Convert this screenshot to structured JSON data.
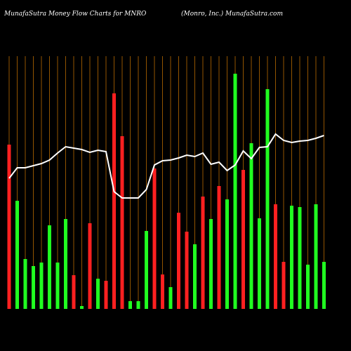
{
  "chart_data": {
    "type": "bar",
    "title": "MunafaSutra  Money Flow  Charts for MNRO",
    "subtitle": "(Monro,  Inc.) MunafaSutra.com",
    "categories": [
      null,
      null,
      null,
      null,
      null,
      null,
      null,
      null,
      null,
      null,
      null,
      null,
      null,
      null,
      null,
      null,
      null,
      null,
      null,
      null,
      null,
      null,
      null,
      null,
      null,
      null,
      null,
      null,
      null,
      null,
      null,
      null,
      null,
      null,
      null,
      null,
      null,
      null,
      null,
      null
    ],
    "values": [
      234,
      154,
      71,
      61,
      66,
      119,
      66,
      128,
      48,
      4,
      122,
      43,
      40,
      307,
      246,
      11,
      11,
      111,
      200,
      49,
      31,
      137,
      110,
      92,
      160,
      128,
      175,
      156,
      335,
      198,
      236,
      129,
      313,
      149,
      67,
      147,
      145,
      63,
      149,
      67
    ],
    "colors": [
      "#ff2020",
      "#20ff20",
      "#20ff20",
      "#20ff20",
      "#20ff20",
      "#20ff20",
      "#20ff20",
      "#20ff20",
      "#ff2020",
      "#20ff20",
      "#ff2020",
      "#20ff20",
      "#ff2020",
      "#ff2020",
      "#ff2020",
      "#20ff20",
      "#20ff20",
      "#20ff20",
      "#ff2020",
      "#ff2020",
      "#20ff20",
      "#ff2020",
      "#ff2020",
      "#20ff20",
      "#ff2020",
      "#20ff20",
      "#ff2020",
      "#20ff20",
      "#20ff20",
      "#ff2020",
      "#20ff20",
      "#20ff20",
      "#20ff20",
      "#ff2020",
      "#ff2020",
      "#20ff20",
      "#20ff20",
      "#20ff20",
      "#20ff20",
      "#20ff20"
    ],
    "line": {
      "color": "#ffffff",
      "values": [
        186,
        201,
        201,
        204,
        207,
        212,
        222,
        231,
        229,
        227,
        223,
        226,
        224,
        167,
        158,
        158,
        158,
        170,
        205,
        211,
        212,
        215,
        219,
        217,
        222,
        206,
        209,
        197,
        205,
        225,
        214,
        230,
        231,
        249,
        240,
        237,
        239,
        240,
        243,
        247
      ]
    },
    "grid_color": "#b86a00",
    "ylim": [
      0,
      360
    ]
  }
}
